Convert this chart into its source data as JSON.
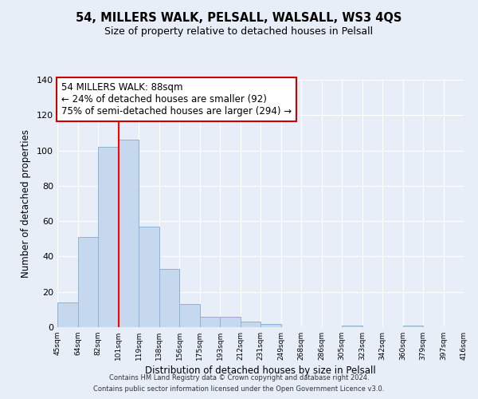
{
  "title": "54, MILLERS WALK, PELSALL, WALSALL, WS3 4QS",
  "subtitle": "Size of property relative to detached houses in Pelsall",
  "xlabel": "Distribution of detached houses by size in Pelsall",
  "ylabel": "Number of detached properties",
  "bar_values": [
    14,
    51,
    102,
    106,
    57,
    33,
    13,
    6,
    6,
    3,
    2,
    0,
    0,
    0,
    1,
    0,
    0,
    1,
    0,
    0
  ],
  "bar_labels": [
    "45sqm",
    "64sqm",
    "82sqm",
    "101sqm",
    "119sqm",
    "138sqm",
    "156sqm",
    "175sqm",
    "193sqm",
    "212sqm",
    "231sqm",
    "249sqm",
    "268sqm",
    "286sqm",
    "305sqm",
    "323sqm",
    "342sqm",
    "360sqm",
    "379sqm",
    "397sqm",
    "416sqm"
  ],
  "bar_color": "#c5d8ee",
  "bar_edge_color": "#8ab4d4",
  "ylim": [
    0,
    140
  ],
  "yticks": [
    0,
    20,
    40,
    60,
    80,
    100,
    120,
    140
  ],
  "red_line_x": 3,
  "annotation_title": "54 MILLERS WALK: 88sqm",
  "annotation_line1": "← 24% of detached houses are smaller (92)",
  "annotation_line2": "75% of semi-detached houses are larger (294) →",
  "annotation_box_facecolor": "#ffffff",
  "annotation_box_edgecolor": "#cc0000",
  "footer_line1": "Contains HM Land Registry data © Crown copyright and database right 2024.",
  "footer_line2": "Contains public sector information licensed under the Open Government Licence v3.0.",
  "background_color": "#e8eef8",
  "grid_color": "#ffffff",
  "plot_bg_color": "#e8eef8"
}
